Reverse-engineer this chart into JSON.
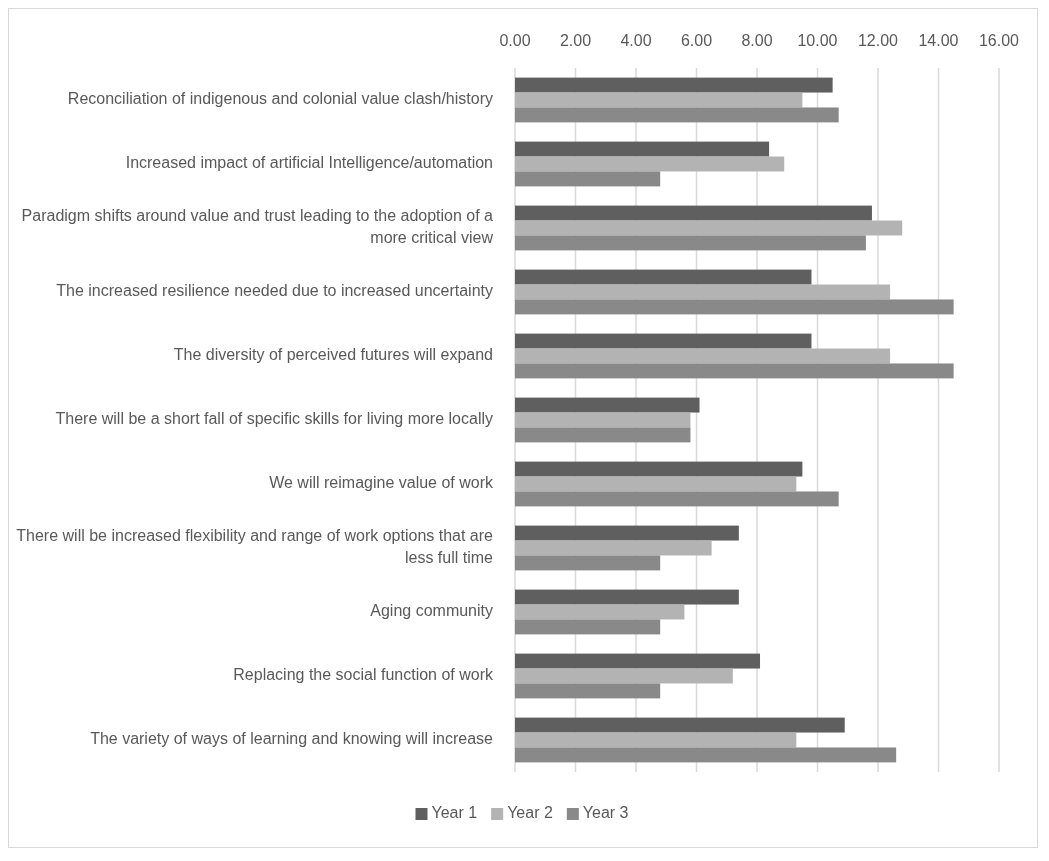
{
  "chart_data": {
    "type": "bar",
    "orientation": "horizontal",
    "categories": [
      "Reconciliation of indigenous and colonial value clash/history",
      "Increased impact of artificial Intelligence/automation",
      "Paradigm shifts around value and trust leading to the adoption of a more critical view",
      "The increased resilience needed due to increased uncertainty",
      "The diversity of perceived futures will expand",
      "There will be a short fall of specific skills for living more locally",
      "We will reimagine value of work",
      "There will be increased flexibility and range of work options that are less full time",
      "Aging community",
      "Replacing the social function of work",
      "The variety of ways of learning and knowing will increase"
    ],
    "series": [
      {
        "name": "Year 1",
        "color": "#5f5f5f",
        "values": [
          10.5,
          8.4,
          11.8,
          9.8,
          9.8,
          6.1,
          9.5,
          7.4,
          7.4,
          8.1,
          10.9
        ]
      },
      {
        "name": "Year 2",
        "color": "#b3b3b3",
        "values": [
          9.5,
          8.9,
          12.8,
          12.4,
          12.4,
          5.8,
          9.3,
          6.5,
          5.6,
          7.2,
          9.3
        ]
      },
      {
        "name": "Year 3",
        "color": "#898989",
        "values": [
          10.7,
          4.8,
          11.6,
          14.5,
          14.5,
          5.8,
          10.7,
          4.8,
          4.8,
          4.8,
          12.6
        ]
      }
    ],
    "xlim": [
      0,
      16
    ],
    "xticks": [
      {
        "value": 0,
        "label": "0.00"
      },
      {
        "value": 2,
        "label": "2.00"
      },
      {
        "value": 4,
        "label": "4.00"
      },
      {
        "value": 6,
        "label": "6.00"
      },
      {
        "value": 8,
        "label": "8.00"
      },
      {
        "value": 10,
        "label": "10.00"
      },
      {
        "value": 12,
        "label": "12.00"
      },
      {
        "value": 14,
        "label": "14.00"
      },
      {
        "value": 16,
        "label": "16.00"
      }
    ],
    "grid": "x",
    "legend": "bottom"
  }
}
